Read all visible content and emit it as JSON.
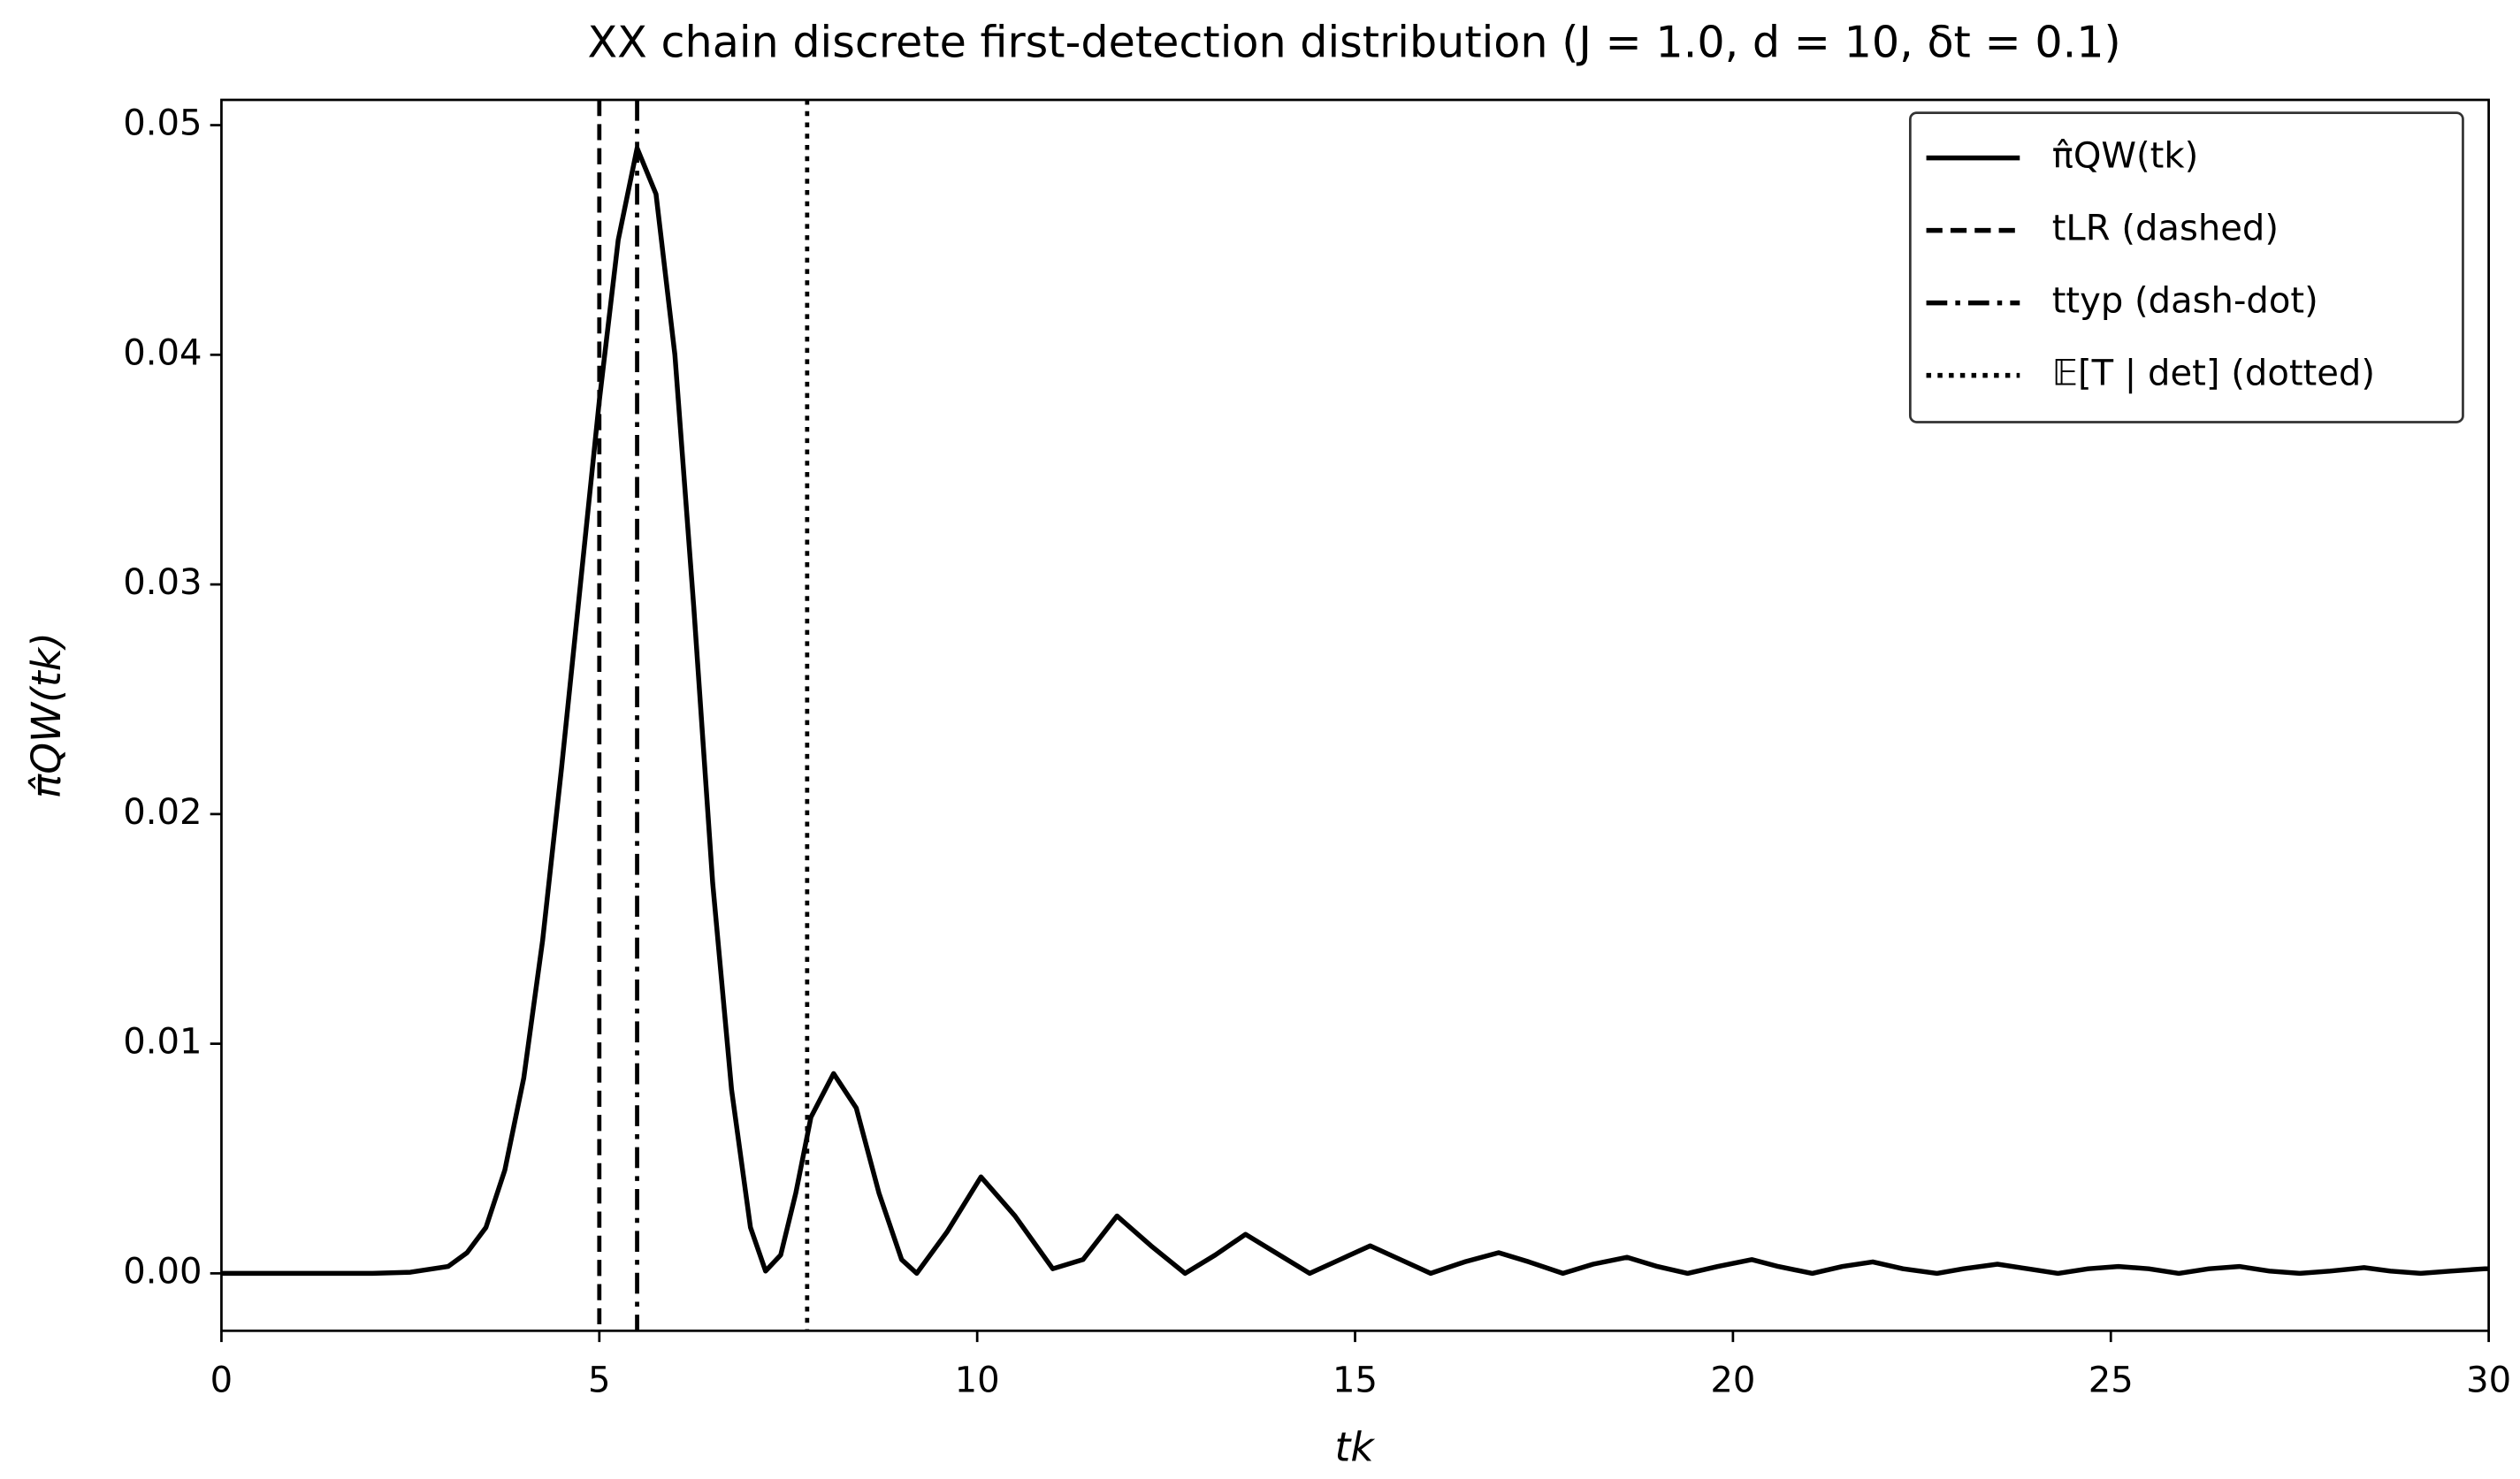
{
  "chart_data": {
    "type": "line",
    "title": "XX chain discrete first-detection distribution (J = 1.0, d = 10, δt = 0.1)",
    "xlabel": "tk",
    "ylabel": "π̂QW(tk)",
    "x": [
      0,
      1,
      2,
      2.5,
      3,
      3.25,
      3.5,
      3.75,
      4,
      4.25,
      4.5,
      4.75,
      5,
      5.25,
      5.5,
      5.75,
      6,
      6.25,
      6.5,
      6.75,
      7,
      7.2,
      7.4,
      7.6,
      7.8,
      8.1,
      8.4,
      8.7,
      9,
      9.2,
      9.6,
      10.05,
      10.5,
      11,
      11.4,
      11.85,
      12.3,
      12.75,
      13.15,
      13.55,
      14,
      14.4,
      14.8,
      15.2,
      15.6,
      16,
      16.45,
      16.9,
      17.3,
      17.75,
      18.15,
      18.6,
      19,
      19.4,
      19.8,
      20.25,
      20.6,
      21.05,
      21.45,
      21.85,
      22.25,
      22.7,
      23.05,
      23.5,
      23.9,
      24.3,
      24.7,
      25.1,
      25.5,
      25.9,
      26.3,
      26.7,
      27.1,
      27.5,
      27.9,
      28.35,
      28.7,
      29.1,
      29.5,
      29.95,
      30
    ],
    "series": [
      {
        "name": "π̂QW(tk)",
        "color": "#000000",
        "values": [
          0,
          0,
          0,
          5e-05,
          0.0003,
          0.0009,
          0.002,
          0.0045,
          0.0085,
          0.0145,
          0.022,
          0.03,
          0.038,
          0.045,
          0.049,
          0.047,
          0.04,
          0.029,
          0.017,
          0.008,
          0.002,
          0.0001,
          0.0008,
          0.0035,
          0.0068,
          0.0087,
          0.0072,
          0.0035,
          0.0006,
          0,
          0.0018,
          0.0042,
          0.0025,
          0.0002,
          0.0006,
          0.0025,
          0.0012,
          0,
          0.0008,
          0.0017,
          0.0008,
          0,
          0.0006,
          0.0012,
          0.0006,
          0,
          0.0005,
          0.0009,
          0.0005,
          0,
          0.0004,
          0.0007,
          0.0003,
          0,
          0.0003,
          0.0006,
          0.0003,
          0,
          0.0003,
          0.0005,
          0.0002,
          0,
          0.0002,
          0.0004,
          0.0002,
          0,
          0.0002,
          0.0003,
          0.0002,
          0,
          0.0002,
          0.0003,
          0.0001,
          0,
          0.0001,
          0.00025,
          0.0001,
          0,
          0.0001,
          0.0002,
          0.0002
        ]
      }
    ],
    "vlines": [
      {
        "name": "tLR (dashed)",
        "x": 5.0,
        "style": "dashed"
      },
      {
        "name": "ttyp (dash-dot)",
        "x": 5.5,
        "style": "dash-dot"
      },
      {
        "name": "𝔼[T | det] (dotted)",
        "x": 7.75,
        "style": "dotted"
      }
    ],
    "xlim": [
      0,
      30
    ],
    "xticks": [
      0,
      5,
      10,
      15,
      20,
      25,
      30
    ],
    "ylim": [
      -0.0025,
      0.0511
    ],
    "yticks": [
      {
        "value": 0,
        "label": "0.00"
      },
      {
        "value": 0.01,
        "label": "0.01"
      },
      {
        "value": 0.02,
        "label": "0.02"
      },
      {
        "value": 0.03,
        "label": "0.03"
      },
      {
        "value": 0.04,
        "label": "0.04"
      },
      {
        "value": 0.05,
        "label": "0.05"
      }
    ],
    "legend": "upper right"
  }
}
